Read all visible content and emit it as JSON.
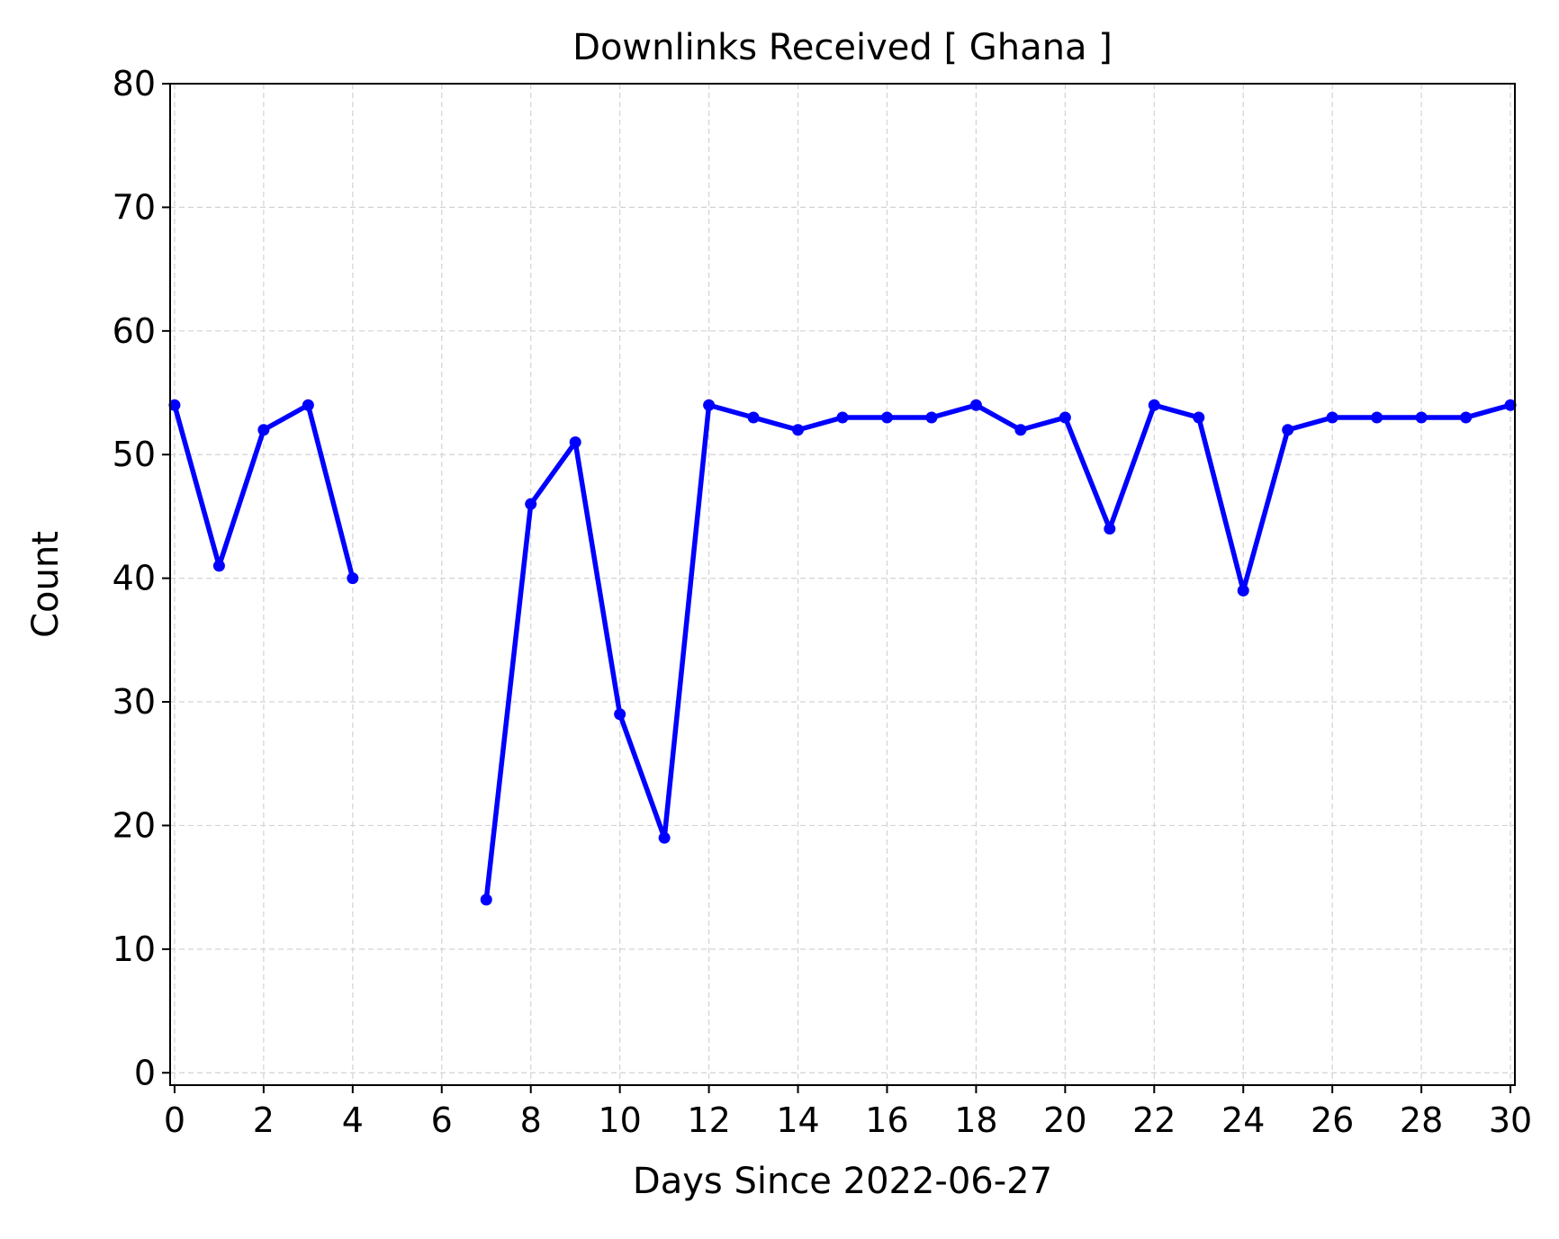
{
  "chart_data": {
    "type": "line",
    "title": "Downlinks Received [ Ghana ]",
    "xlabel": "Days Since 2022-06-27",
    "ylabel": "Count",
    "xlim": [
      -0.1,
      30.1
    ],
    "ylim": [
      -1,
      80
    ],
    "xticks": [
      0,
      2,
      4,
      6,
      8,
      10,
      12,
      14,
      16,
      18,
      20,
      22,
      24,
      26,
      28,
      30
    ],
    "yticks": [
      0,
      10,
      20,
      30,
      40,
      50,
      60,
      70,
      80
    ],
    "grid": true,
    "series": [
      {
        "color": "#0000ff",
        "x": [
          0,
          1,
          2,
          3,
          4,
          5,
          6,
          7,
          8,
          9,
          10,
          11,
          12,
          13,
          14,
          15,
          16,
          17,
          18,
          19,
          20,
          21,
          22,
          23,
          24,
          25,
          26,
          27,
          28,
          29,
          30
        ],
        "values": [
          54,
          41,
          52,
          54,
          40,
          null,
          null,
          14,
          46,
          51,
          29,
          19,
          54,
          53,
          52,
          53,
          53,
          53,
          54,
          52,
          53,
          44,
          54,
          53,
          39,
          52,
          53,
          53,
          53,
          53,
          54
        ]
      }
    ]
  }
}
